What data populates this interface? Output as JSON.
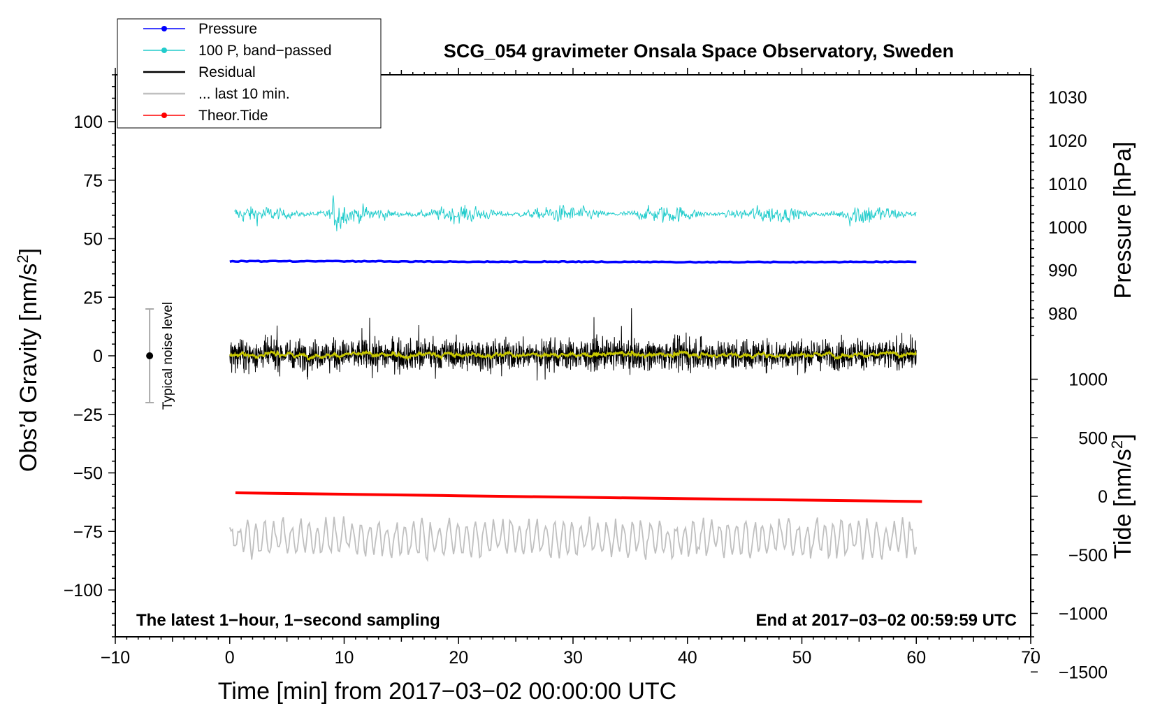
{
  "chart_data": {
    "type": "line",
    "title": "SCG_054 gravimeter Onsala Space Observatory, Sweden",
    "xlabel": "Time [min] from 2017−03−02 00:00:00 UTC",
    "ylabel_left": "Obs’d Gravity [nm/s",
    "ylabel_left_sup": "2",
    "ylabel_left_end": "]",
    "ylabel_right_pressure": "Pressure [hPa]",
    "ylabel_right_tide": "Tide [nm/s",
    "ylabel_right_tide_sup": "2",
    "ylabel_right_tide_end": "]",
    "xlim": [
      -10,
      70
    ],
    "ylim_left": [
      -120,
      120
    ],
    "x_ticks": [
      "−10",
      "0",
      "10",
      "20",
      "30",
      "40",
      "50",
      "60",
      "70"
    ],
    "x_tick_values": [
      -10,
      0,
      10,
      20,
      30,
      40,
      50,
      60,
      70
    ],
    "left_ticks": [
      "100",
      "75",
      "50",
      "25",
      "0",
      "−25",
      "−50",
      "−75",
      "−100"
    ],
    "left_tick_values": [
      100,
      75,
      50,
      25,
      0,
      -25,
      -50,
      -75,
      -100
    ],
    "pressure_axis": {
      "ticks": [
        "1030",
        "1020",
        "1010",
        "1000",
        "990",
        "980"
      ],
      "tick_values": [
        1030,
        1020,
        1010,
        1000,
        990,
        980
      ],
      "gravity_at_1000": 55,
      "gravity_per_hPa": 1.85
    },
    "tide_axis": {
      "ticks": [
        "1000",
        "500",
        "0",
        "−500",
        "−1000",
        "−1500"
      ],
      "tick_values": [
        1000,
        500,
        0,
        -500,
        -1000,
        -1500
      ],
      "gravity_at_0": -60,
      "gravity_per_unit": 0.05
    },
    "series": [
      {
        "name": "Pressure",
        "color": "#0000ff",
        "x": [
          0,
          10,
          20,
          30,
          40,
          50,
          60
        ],
        "pressure_hPa": [
          992.1,
          992.1,
          992.0,
          992.0,
          991.9,
          991.9,
          992.0
        ]
      },
      {
        "name": "100 P, band−passed",
        "color": "#22cccc",
        "center": 60.5,
        "amplitude": 3.5
      },
      {
        "name": "Residual",
        "color": "#000000",
        "center": 0.5,
        "amplitude": 6
      },
      {
        "name": "... last 10 min.",
        "color": "#c0c0c0",
        "center": -78,
        "amplitude": 5
      },
      {
        "name": "Theor.Tide",
        "color": "#ff0000",
        "x": [
          0.5,
          10,
          20,
          30,
          40,
          50,
          60.5
        ],
        "tide": [
          30,
          18,
          5,
          -8,
          -20,
          -32,
          -45
        ]
      }
    ],
    "smoothed_residual_color": "#c8c800",
    "noise_indicator": {
      "label": "Typical noise level",
      "x": -7,
      "center": 0,
      "half_range": 20
    },
    "annotations": {
      "bottom_left": "The latest 1−hour, 1−second sampling",
      "bottom_right": "End at 2017−03−02 00:59:59 UTC"
    },
    "legend_position": "top-left"
  }
}
